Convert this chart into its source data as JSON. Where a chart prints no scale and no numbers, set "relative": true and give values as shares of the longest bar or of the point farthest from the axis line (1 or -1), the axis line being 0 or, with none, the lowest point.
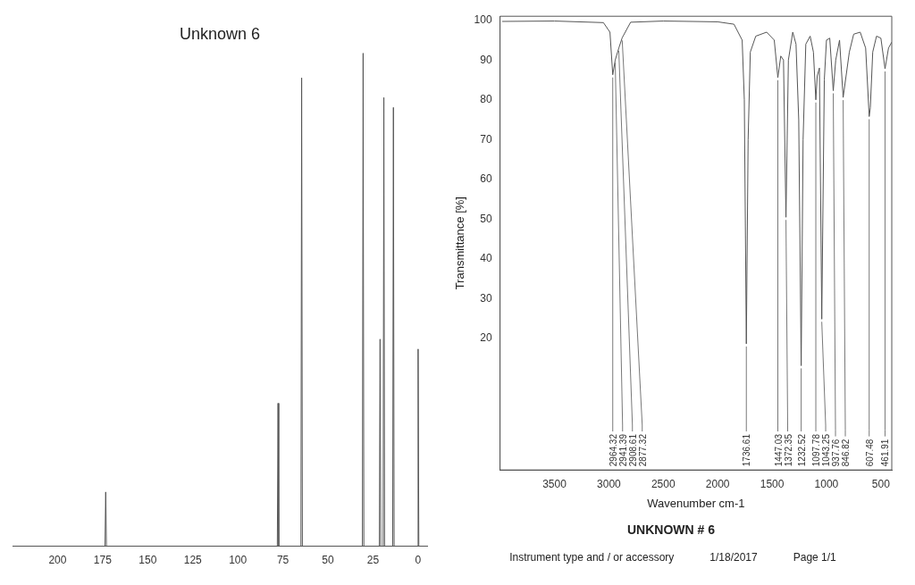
{
  "chart_data": [
    {
      "type": "line",
      "title": "Unknown 6",
      "relative": true,
      "tick_labels": "x",
      "color": "#555555",
      "x": [
        225,
        173.7,
        173.3,
        172.9,
        78.1,
        77.7,
        77.3,
        65.0,
        64.6,
        64.2,
        30.9,
        30.5,
        30.1,
        21.5,
        21.1,
        20.7,
        19.4,
        19.0,
        18.6,
        14.1,
        13.7,
        13.3,
        0.4,
        0,
        -0.4,
        -5
      ],
      "values": [
        0,
        0,
        0.11,
        0,
        0,
        0.29,
        0,
        0,
        0.95,
        0,
        0,
        1,
        0,
        0,
        0.42,
        0,
        0,
        0.91,
        0,
        0,
        0.89,
        0,
        0,
        0.4,
        0,
        0
      ],
      "xlim": [
        225,
        -5
      ],
      "xticks": [
        200,
        175,
        150,
        125,
        100,
        75,
        50,
        25,
        0
      ]
    },
    {
      "type": "line",
      "title": "UNKNOWN # 6",
      "xlabel": "Wavenumber cm-1",
      "ylabel": "Transmittance [%]",
      "color": "#555555",
      "x": [
        3980,
        3500,
        3050,
        2990,
        2964.32,
        2941.39,
        2908.61,
        2877.32,
        2800,
        2500,
        2000,
        1850,
        1775,
        1755,
        1736.61,
        1720,
        1700,
        1650,
        1550,
        1480,
        1447.03,
        1420,
        1395,
        1372.35,
        1350,
        1310,
        1280,
        1255,
        1232.52,
        1215,
        1190,
        1150,
        1120,
        1097.78,
        1085,
        1065,
        1043.25,
        1020,
        1000,
        970,
        937.76,
        915,
        880,
        846.82,
        790,
        750,
        690,
        640,
        607.48,
        597,
        575,
        540,
        500,
        461.91,
        430,
        400
      ],
      "values": [
        99.7,
        99.8,
        99.4,
        97,
        86.3,
        90,
        93,
        95.6,
        99.5,
        99.8,
        99.6,
        99,
        95,
        80,
        18.7,
        70,
        92,
        96,
        97,
        95,
        85.6,
        91,
        90,
        50.5,
        90,
        97,
        94,
        75,
        13.2,
        70,
        94,
        96,
        92,
        80,
        86,
        88,
        24.9,
        85,
        95,
        95.5,
        82.3,
        90,
        95,
        80.6,
        92,
        96.5,
        97,
        93,
        75.8,
        78,
        92,
        96,
        95.5,
        87.8,
        93,
        94.5
      ],
      "xlim": [
        4000,
        400
      ],
      "xticks": [
        3500,
        3000,
        2500,
        2000,
        1500,
        1000,
        500
      ],
      "ylim": [
        -13,
        101
      ],
      "yticks": [
        20,
        30,
        40,
        50,
        60,
        70,
        80,
        90,
        100
      ],
      "annotations": [
        {
          "text": "461.91",
          "x": 461.91,
          "y": 87.8
        },
        {
          "text": "607.48",
          "x": 607.48,
          "y": 75.8
        },
        {
          "text": "846.82",
          "x": 846.82,
          "y": 80.6
        },
        {
          "text": "937.76",
          "x": 937.76,
          "y": 82.3
        },
        {
          "text": "1043.25",
          "x": 1043.25,
          "y": 24.9
        },
        {
          "text": "1097.78",
          "x": 1097.78,
          "y": 80
        },
        {
          "text": "1232.52",
          "x": 1232.52,
          "y": 13.2
        },
        {
          "text": "1372.35",
          "x": 1372.35,
          "y": 50.5
        },
        {
          "text": "1447.03",
          "x": 1447.03,
          "y": 85.6
        },
        {
          "text": "1736.61",
          "x": 1736.61,
          "y": 18.7
        },
        {
          "text": "2877.32",
          "x": 2877.32,
          "y": 95.6
        },
        {
          "text": "2908.61",
          "x": 2908.61,
          "y": 93
        },
        {
          "text": "2941.39",
          "x": 2941.39,
          "y": 90
        },
        {
          "text": "2964.32",
          "x": 2964.32,
          "y": 86.3
        },
        "Instrument type and / or accessory",
        "1/18/2017",
        "Page 1/1"
      ]
    }
  ]
}
